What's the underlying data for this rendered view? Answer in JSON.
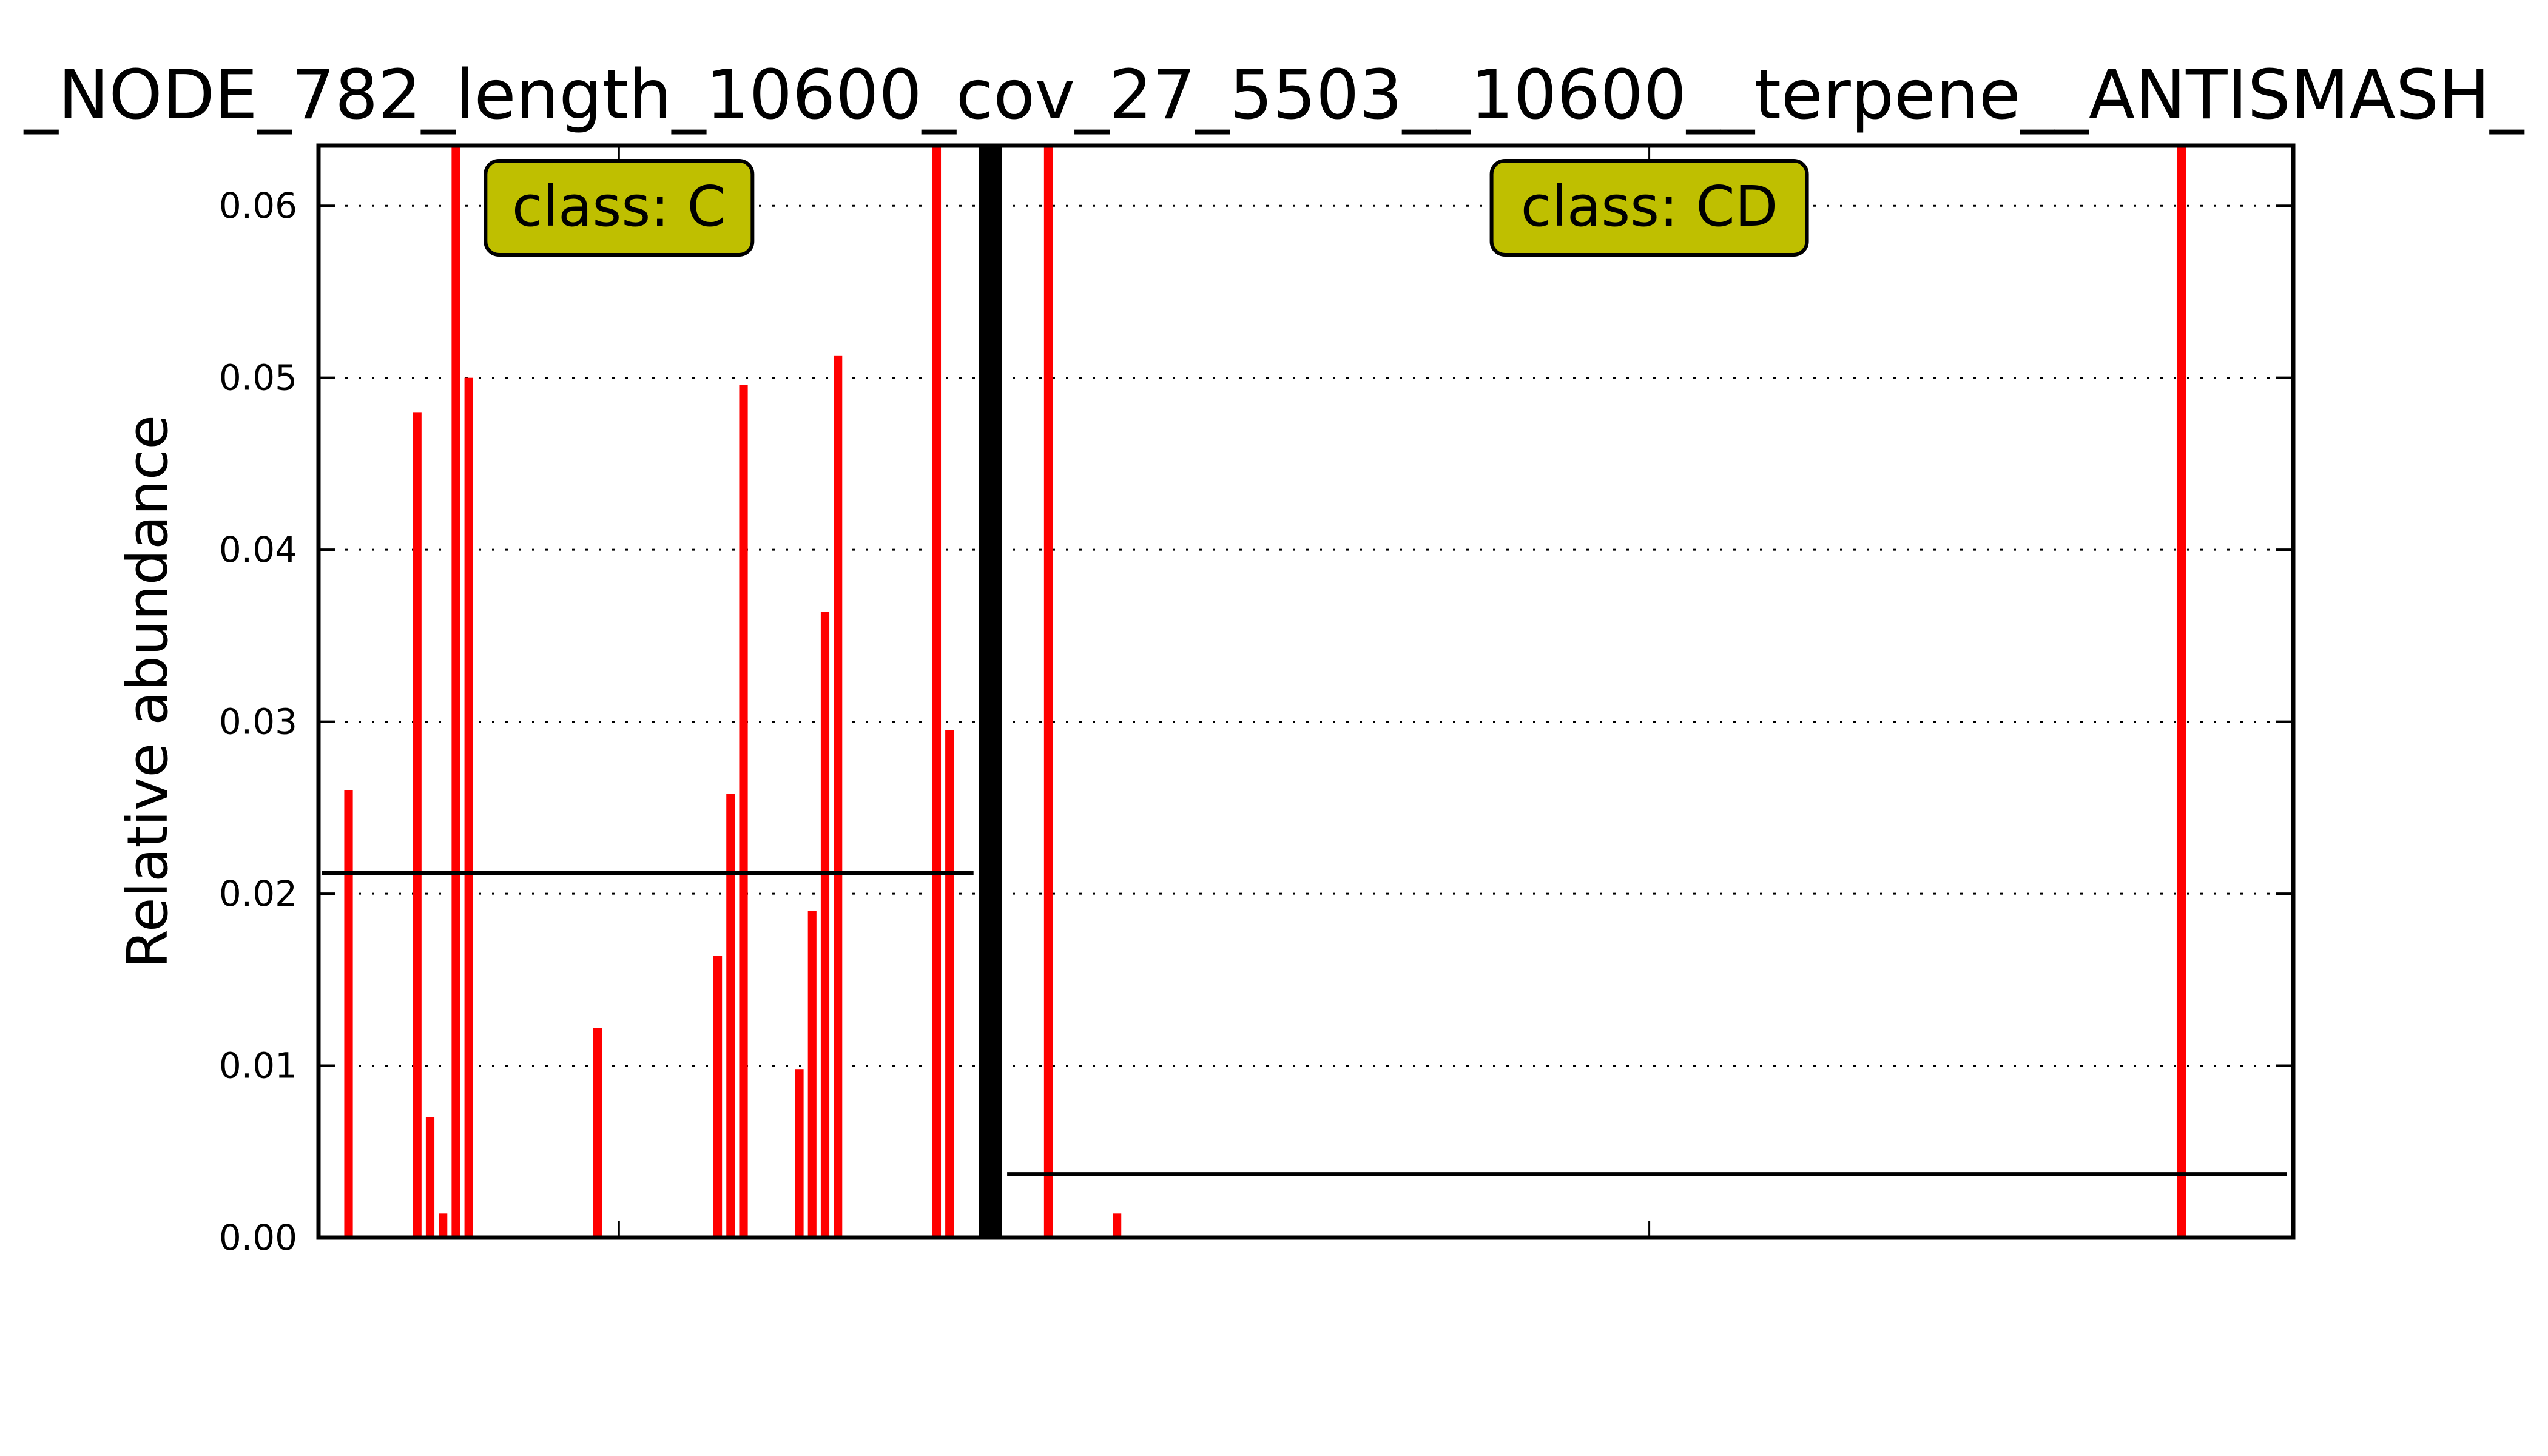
{
  "chart_data": {
    "type": "bar",
    "title": "_NODE_782_length_10600_cov_27_5503__10600__terpene__ANTISMASH_",
    "ylabel": "Relative abundance",
    "xlabel": "",
    "ylim": [
      0,
      0.0635
    ],
    "yticks": [
      "0.00",
      "0.01",
      "0.02",
      "0.03",
      "0.04",
      "0.05",
      "0.06"
    ],
    "grid": "horizontal dotted",
    "colors": {
      "bars": "#ff0000",
      "class_box": "#bfbf00",
      "axes": "#000000"
    },
    "groups": [
      {
        "label": "class: C",
        "mean": 0.0212,
        "positions": [
          0.2,
          1.8,
          2.1,
          2.4,
          2.7,
          3.0,
          6.0,
          8.8,
          9.1,
          9.4,
          10.7,
          11.0,
          11.3,
          11.6,
          13.9,
          14.2
        ],
        "values": [
          0.026,
          0.048,
          0.007,
          0.0014,
          0.0635,
          0.05,
          0.0122,
          0.0164,
          0.0258,
          0.0496,
          0.0098,
          0.019,
          0.0364,
          0.0513,
          0.0635,
          0.0295
        ]
      },
      {
        "label": "class: CD",
        "mean": 0.0037,
        "positions": [
          16.5,
          18.1,
          42.9
        ],
        "values": [
          0.0635,
          0.0014,
          0.0635
        ]
      }
    ]
  }
}
